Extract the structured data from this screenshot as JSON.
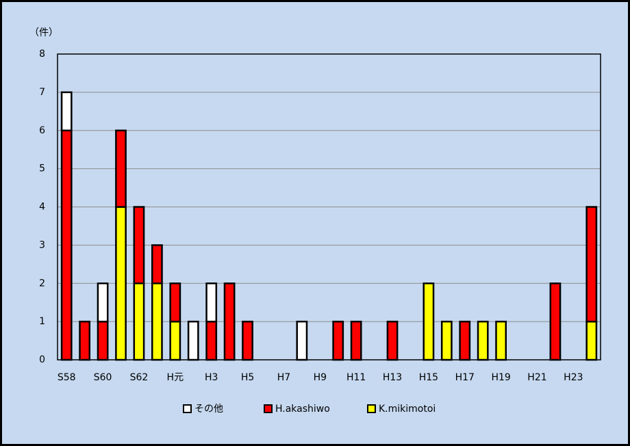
{
  "chart_data": {
    "type": "stacked-bar",
    "y_label": "（件）",
    "categories": [
      "S58",
      null,
      "S60",
      null,
      "S62",
      null,
      "H元",
      null,
      "H3",
      null,
      "H5",
      null,
      "H7",
      null,
      "H9",
      null,
      "H11",
      null,
      "H13",
      null,
      "H15",
      null,
      "H17",
      null,
      "H19",
      null,
      "H21",
      null,
      "H23",
      null
    ],
    "series": [
      {
        "name": "その他",
        "color": "#ffffff",
        "values": [
          1,
          0,
          1,
          0,
          0,
          0,
          0,
          1,
          1,
          0,
          0,
          0,
          0,
          1,
          0,
          0,
          0,
          0,
          0,
          0,
          0,
          0,
          0,
          0,
          0,
          0,
          0,
          0,
          0,
          0
        ]
      },
      {
        "name": "H.akashiwo",
        "color": "#ff0000",
        "values": [
          6,
          1,
          1,
          2,
          2,
          1,
          1,
          0,
          1,
          2,
          1,
          0,
          0,
          0,
          0,
          1,
          1,
          0,
          1,
          0,
          0,
          0,
          1,
          0,
          0,
          0,
          0,
          2,
          0,
          3
        ]
      },
      {
        "name": "K.mikimotoi",
        "color": "#ffff00",
        "values": [
          0,
          0,
          0,
          4,
          2,
          2,
          1,
          0,
          0,
          0,
          0,
          0,
          0,
          0,
          0,
          0,
          0,
          0,
          0,
          0,
          2,
          1,
          0,
          1,
          1,
          0,
          0,
          0,
          0,
          1
        ]
      }
    ],
    "ylim": [
      0,
      8
    ],
    "yticks": [
      0,
      1,
      2,
      3,
      4,
      5,
      6,
      7,
      8
    ],
    "grid": true
  }
}
